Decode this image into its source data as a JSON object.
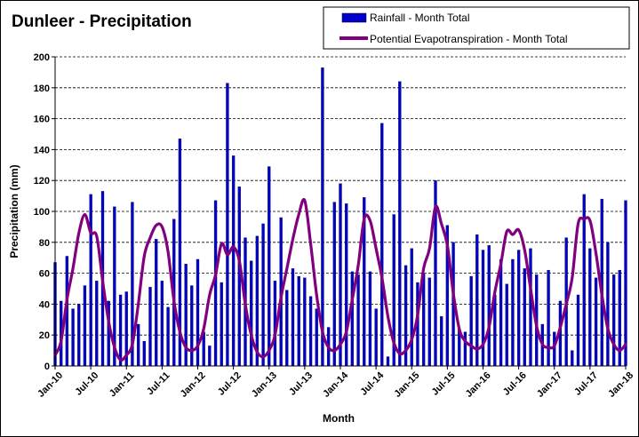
{
  "chart_data": {
    "type": "bar+line",
    "title": "Dunleer - Precipitation",
    "xlabel": "Month",
    "ylabel": "Precipitation (mm)",
    "ylim": [
      0,
      200
    ],
    "yticks": [
      0,
      20,
      40,
      60,
      80,
      100,
      120,
      140,
      160,
      180,
      200
    ],
    "grid": "horizontal dashed",
    "legend_position": "top-right",
    "start_month": "Jan-10",
    "xtick_labels": [
      "Jan-10",
      "Jul-10",
      "Jan-11",
      "Jul-11",
      "Jan-12",
      "Jul-12",
      "Jan-13",
      "Jul-13",
      "Jan-14",
      "Jul-14",
      "Jan-15",
      "Jul-15",
      "Jan-16",
      "Jul-16",
      "Jan-17",
      "Jul-17",
      "Jan-18"
    ],
    "series": [
      {
        "name": "Rainfall - Month Total",
        "type": "bar",
        "color": "#0000cc",
        "values": [
          67,
          42,
          71,
          37,
          40,
          52,
          111,
          55,
          113,
          42,
          103,
          46,
          48,
          106,
          27,
          16,
          51,
          82,
          55,
          38,
          95,
          147,
          66,
          52,
          69,
          22,
          13,
          107,
          54,
          183,
          136,
          116,
          83,
          68,
          84,
          92,
          129,
          55,
          96,
          49,
          63,
          58,
          57,
          45,
          37,
          193,
          25,
          106,
          118,
          105,
          61,
          59,
          109,
          61,
          37,
          157,
          6,
          98,
          184,
          65,
          76,
          54,
          60,
          57,
          120,
          32,
          91,
          80,
          24,
          22,
          58,
          85,
          75,
          78,
          46,
          69,
          53,
          69,
          75,
          63,
          76,
          59,
          27,
          62,
          22,
          42,
          83,
          10,
          46,
          111,
          76,
          57,
          108,
          80,
          59,
          62,
          107
        ]
      },
      {
        "name": "Potential Evapotranspiration - Month Total",
        "type": "line",
        "color": "#800080",
        "values": [
          7,
          16,
          43,
          63,
          86,
          98,
          86,
          84,
          55,
          29,
          12,
          4,
          7,
          14,
          40,
          71,
          83,
          91,
          90,
          74,
          42,
          22,
          12,
          10,
          13,
          24,
          46,
          59,
          79,
          72,
          77,
          68,
          40,
          20,
          9,
          6,
          10,
          20,
          44,
          63,
          82,
          98,
          107,
          79,
          46,
          22,
          12,
          10,
          14,
          22,
          43,
          65,
          95,
          94,
          76,
          57,
          32,
          15,
          8,
          10,
          17,
          33,
          63,
          76,
          103,
          92,
          78,
          47,
          24,
          16,
          13,
          11,
          14,
          25,
          48,
          66,
          87,
          85,
          88,
          75,
          50,
          26,
          14,
          12,
          13,
          25,
          40,
          57,
          92,
          95,
          94,
          73,
          46,
          24,
          14,
          10,
          14
        ]
      }
    ]
  }
}
